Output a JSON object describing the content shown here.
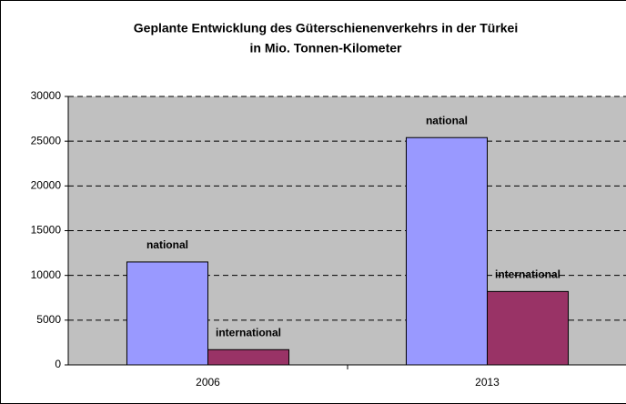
{
  "chart_data": {
    "type": "bar",
    "title": "Geplante Entwicklung des Güterschienenverkehrs in der Türkei",
    "subtitle": "in Mio. Tonnen-Kilometer",
    "categories": [
      "2006",
      "2013"
    ],
    "series": [
      {
        "name": "national",
        "color": "#9999ff",
        "values": [
          11500,
          25400
        ]
      },
      {
        "name": "international",
        "color": "#993366",
        "values": [
          1700,
          8200
        ]
      }
    ],
    "ylim": [
      0,
      30000
    ],
    "yticks": [
      0,
      5000,
      10000,
      15000,
      20000,
      25000,
      30000
    ],
    "grid": true
  }
}
